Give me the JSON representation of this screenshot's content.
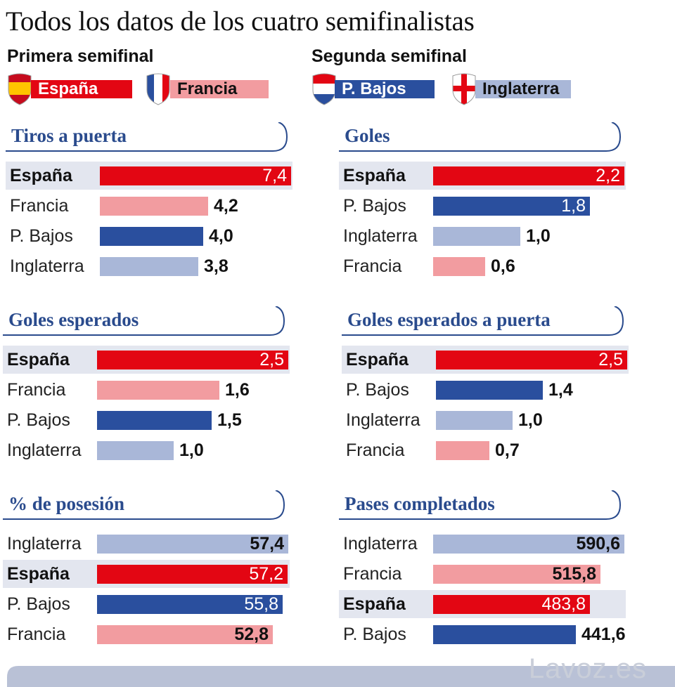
{
  "title": "Todos los datos de los cuatro semifinalistas",
  "legend": {
    "semifinal_1": "Primera semifinal",
    "semifinal_2": "Segunda semifinal",
    "teams": [
      {
        "name": "España",
        "color": "#e30613",
        "text_color": "#ffffff",
        "flag": "spain-flag-icon"
      },
      {
        "name": "Francia",
        "color": "#f29ca0",
        "text_color": "#111111",
        "flag": "france-flag-icon"
      },
      {
        "name": "P. Bajos",
        "color": "#2a4f9e",
        "text_color": "#ffffff",
        "flag": "netherlands-flag-icon"
      },
      {
        "name": "Inglaterra",
        "color": "#a9b7d8",
        "text_color": "#111111",
        "flag": "england-flag-icon"
      }
    ]
  },
  "brand": "Lavoz.es",
  "chart_data": [
    {
      "type": "bar",
      "title": "Tiros a puerta",
      "categories": [
        "España",
        "Francia",
        "P. Bajos",
        "Inglaterra"
      ],
      "values": [
        7.4,
        4.2,
        4.0,
        3.8
      ],
      "labels": [
        "7,4",
        "4,2",
        "4,0",
        "3,8"
      ],
      "xlim": [
        0,
        7.4
      ]
    },
    {
      "type": "bar",
      "title": "Goles",
      "categories": [
        "España",
        "P. Bajos",
        "Inglaterra",
        "Francia"
      ],
      "values": [
        2.2,
        1.8,
        1.0,
        0.6
      ],
      "labels": [
        "2,2",
        "1,8",
        "1,0",
        "0,6"
      ],
      "xlim": [
        0,
        2.2
      ]
    },
    {
      "type": "bar",
      "title": "Goles esperados",
      "categories": [
        "España",
        "Francia",
        "P. Bajos",
        "Inglaterra"
      ],
      "values": [
        2.5,
        1.6,
        1.5,
        1.0
      ],
      "labels": [
        "2,5",
        "1,6",
        "1,5",
        "1,0"
      ],
      "xlim": [
        0,
        2.5
      ]
    },
    {
      "type": "bar",
      "title": "Goles esperados a puerta",
      "categories": [
        "España",
        "P. Bajos",
        "Inglaterra",
        "Francia"
      ],
      "values": [
        2.5,
        1.4,
        1.0,
        0.7
      ],
      "labels": [
        "2,5",
        "1,4",
        "1,0",
        "0,7"
      ],
      "xlim": [
        0,
        2.5
      ]
    },
    {
      "type": "bar",
      "title": "% de posesión",
      "categories": [
        "Inglaterra",
        "España",
        "P. Bajos",
        "Francia"
      ],
      "values": [
        57.4,
        57.2,
        55.8,
        52.8
      ],
      "labels": [
        "57,4",
        "57,2",
        "55,8",
        "52,8"
      ],
      "xlim": [
        0,
        57.4
      ]
    },
    {
      "type": "bar",
      "title": "Pases completados",
      "categories": [
        "Inglaterra",
        "Francia",
        "España",
        "P. Bajos"
      ],
      "values": [
        590.6,
        515.8,
        483.8,
        441.6
      ],
      "labels": [
        "590,6",
        "515,8",
        "483,8",
        "441,6"
      ],
      "xlim": [
        0,
        590.6
      ]
    }
  ]
}
